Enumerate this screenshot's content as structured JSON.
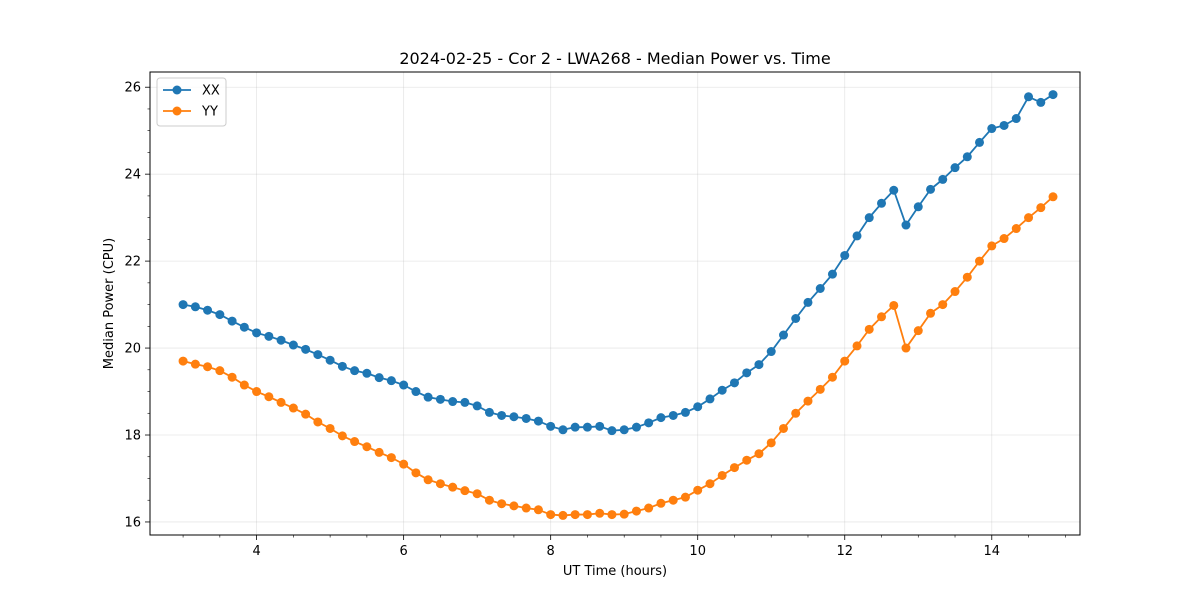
{
  "chart_data": {
    "type": "line",
    "title": "2024-02-25 - Cor 2 - LWA268 - Median Power vs. Time",
    "xlabel": "UT Time (hours)",
    "ylabel": "Median Power (CPU)",
    "xlim": [
      2.55,
      15.2
    ],
    "ylim": [
      15.7,
      26.35
    ],
    "xticks": [
      4,
      6,
      8,
      10,
      12,
      14
    ],
    "xtick_labels": [
      "4",
      "6",
      "8",
      "10",
      "12",
      "14"
    ],
    "yticks": [
      16,
      18,
      20,
      22,
      24,
      26
    ],
    "ytick_labels": [
      "16",
      "18",
      "20",
      "22",
      "24",
      "26"
    ],
    "grid": true,
    "legend_position": "top-left",
    "x": [
      3.0,
      3.167,
      3.333,
      3.5,
      3.667,
      3.833,
      4.0,
      4.167,
      4.333,
      4.5,
      4.667,
      4.833,
      5.0,
      5.167,
      5.333,
      5.5,
      5.667,
      5.833,
      6.0,
      6.167,
      6.333,
      6.5,
      6.667,
      6.833,
      7.0,
      7.167,
      7.333,
      7.5,
      7.667,
      7.833,
      8.0,
      8.167,
      8.333,
      8.5,
      8.667,
      8.833,
      9.0,
      9.167,
      9.333,
      9.5,
      9.667,
      9.833,
      10.0,
      10.167,
      10.333,
      10.5,
      10.667,
      10.833,
      11.0,
      11.167,
      11.333,
      11.5,
      11.667,
      11.833,
      12.0,
      12.167,
      12.333,
      12.5,
      12.667,
      12.833,
      13.0,
      13.167,
      13.333,
      13.5,
      13.667,
      13.833,
      14.0,
      14.167,
      14.333,
      14.5,
      14.667,
      14.833
    ],
    "series": [
      {
        "name": "XX",
        "color": "#1f77b4",
        "values": [
          21.0,
          20.95,
          20.87,
          20.77,
          20.62,
          20.48,
          20.35,
          20.27,
          20.18,
          20.07,
          19.97,
          19.85,
          19.72,
          19.58,
          19.48,
          19.42,
          19.32,
          19.25,
          19.15,
          19.0,
          18.87,
          18.82,
          18.77,
          18.75,
          18.67,
          18.52,
          18.45,
          18.42,
          18.38,
          18.32,
          18.2,
          18.12,
          18.18,
          18.18,
          18.2,
          18.1,
          18.12,
          18.18,
          18.28,
          18.4,
          18.45,
          18.52,
          18.65,
          18.83,
          19.03,
          19.2,
          19.43,
          19.62,
          19.92,
          20.3,
          20.68,
          21.05,
          21.37,
          21.7,
          22.13,
          22.58,
          23.0,
          23.33,
          23.63,
          22.83,
          23.25,
          23.65,
          23.88,
          24.15,
          24.4,
          24.73,
          25.05,
          25.12,
          25.28,
          25.78,
          25.65,
          25.83
        ]
      },
      {
        "name": "YY",
        "color": "#ff7f0e",
        "values": [
          19.7,
          19.63,
          19.57,
          19.48,
          19.33,
          19.15,
          19.0,
          18.88,
          18.75,
          18.62,
          18.48,
          18.3,
          18.15,
          17.98,
          17.85,
          17.73,
          17.6,
          17.48,
          17.33,
          17.13,
          16.97,
          16.88,
          16.8,
          16.72,
          16.65,
          16.5,
          16.42,
          16.37,
          16.32,
          16.28,
          16.17,
          16.15,
          16.17,
          16.17,
          16.2,
          16.17,
          16.18,
          16.25,
          16.32,
          16.43,
          16.5,
          16.57,
          16.73,
          16.88,
          17.07,
          17.25,
          17.42,
          17.57,
          17.82,
          18.15,
          18.5,
          18.78,
          19.05,
          19.33,
          19.7,
          20.05,
          20.43,
          20.72,
          20.98,
          20.0,
          20.4,
          20.8,
          21.0,
          21.3,
          21.63,
          22.0,
          22.35,
          22.52,
          22.75,
          23.0,
          23.23,
          23.48
        ]
      }
    ]
  }
}
